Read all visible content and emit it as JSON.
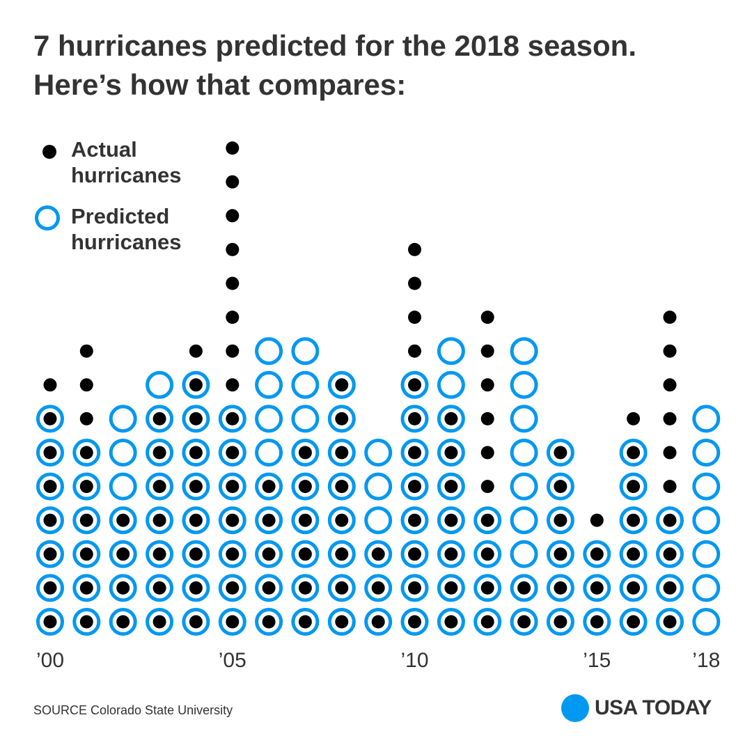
{
  "title": {
    "line1": "7 hurricanes predicted for the 2018 season.",
    "line2": "Here’s how that compares:"
  },
  "legend": {
    "actual_line1": "Actual",
    "actual_line2": "hurricanes",
    "predicted_line1": "Predicted",
    "predicted_line2": "hurricanes"
  },
  "chart_data": {
    "type": "dot-column",
    "title": "7 hurricanes predicted for the 2018 season. Here’s how that compares:",
    "years": [
      2000,
      2001,
      2002,
      2003,
      2004,
      2005,
      2006,
      2007,
      2008,
      2009,
      2010,
      2011,
      2012,
      2013,
      2014,
      2015,
      2016,
      2017,
      2018
    ],
    "series": [
      {
        "name": "Actual hurricanes",
        "values": [
          8,
          9,
          4,
          7,
          9,
          15,
          5,
          6,
          8,
          3,
          12,
          7,
          10,
          2,
          6,
          4,
          7,
          10,
          null
        ]
      },
      {
        "name": "Predicted hurricanes",
        "values": [
          7,
          6,
          7,
          8,
          8,
          7,
          9,
          9,
          8,
          6,
          8,
          9,
          4,
          9,
          6,
          3,
          6,
          4,
          7
        ]
      }
    ],
    "tick_labels": [
      {
        "year": 2000,
        "label": "’00"
      },
      {
        "year": 2005,
        "label": "’05"
      },
      {
        "year": 2010,
        "label": "’10"
      },
      {
        "year": 2015,
        "label": "’15"
      },
      {
        "year": 2018,
        "label": "’18"
      }
    ],
    "colors": {
      "actual": "#000000",
      "predicted": "#0098F0"
    }
  },
  "source": "SOURCE Colorado State University",
  "brand": "USA TODAY"
}
